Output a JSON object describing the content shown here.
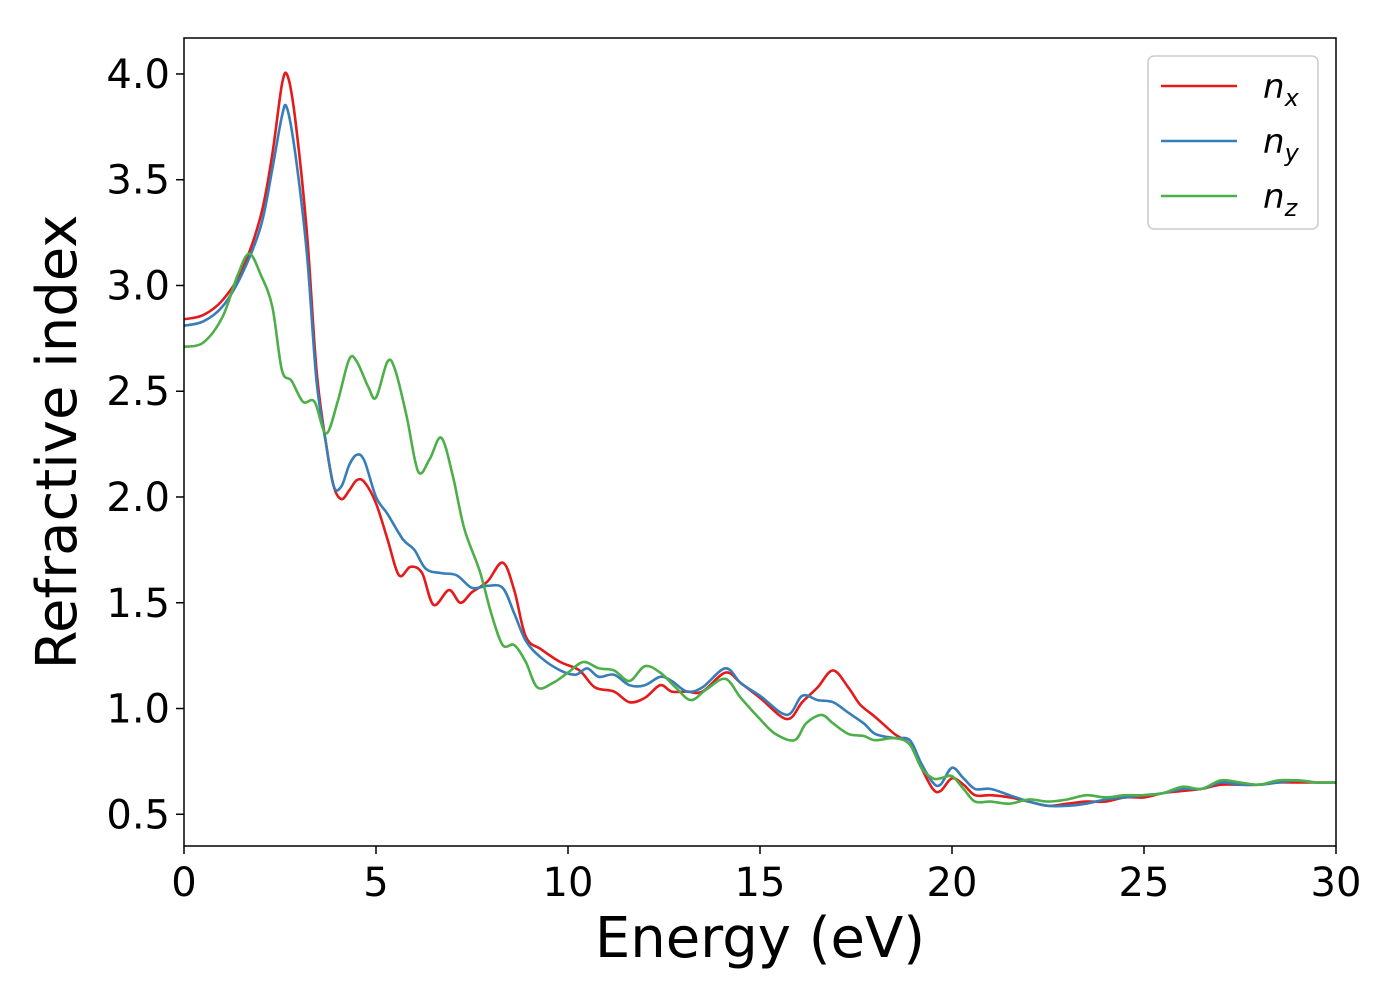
{
  "chart_data": {
    "type": "line",
    "title": "",
    "xlabel": "Energy (eV)",
    "ylabel": "Refractive index",
    "xlim": [
      0,
      30
    ],
    "ylim": [
      0.35,
      4.17
    ],
    "xticks": [
      0,
      5,
      10,
      15,
      20,
      25,
      30
    ],
    "yticks": [
      0.5,
      1.0,
      1.5,
      2.0,
      2.5,
      3.0,
      3.5,
      4.0
    ],
    "grid": false,
    "legend_position": "top-right",
    "series": [
      {
        "name": "n",
        "sub": "x",
        "color": "#e41a1c",
        "points": [
          [
            0,
            2.84
          ],
          [
            0.5,
            2.86
          ],
          [
            1.0,
            2.93
          ],
          [
            1.5,
            3.07
          ],
          [
            2.0,
            3.33
          ],
          [
            2.3,
            3.62
          ],
          [
            2.55,
            3.95
          ],
          [
            2.7,
            3.99
          ],
          [
            2.9,
            3.78
          ],
          [
            3.2,
            3.25
          ],
          [
            3.45,
            2.6
          ],
          [
            3.7,
            2.25
          ],
          [
            3.9,
            2.05
          ],
          [
            4.1,
            1.99
          ],
          [
            4.3,
            2.03
          ],
          [
            4.5,
            2.08
          ],
          [
            4.7,
            2.07
          ],
          [
            5.0,
            1.97
          ],
          [
            5.3,
            1.8
          ],
          [
            5.6,
            1.63
          ],
          [
            5.9,
            1.67
          ],
          [
            6.2,
            1.64
          ],
          [
            6.5,
            1.49
          ],
          [
            6.9,
            1.56
          ],
          [
            7.2,
            1.5
          ],
          [
            7.5,
            1.55
          ],
          [
            7.9,
            1.6
          ],
          [
            8.3,
            1.69
          ],
          [
            8.6,
            1.56
          ],
          [
            8.9,
            1.34
          ],
          [
            9.3,
            1.28
          ],
          [
            9.8,
            1.22
          ],
          [
            10.3,
            1.18
          ],
          [
            10.7,
            1.1
          ],
          [
            11.2,
            1.08
          ],
          [
            11.6,
            1.03
          ],
          [
            12.0,
            1.05
          ],
          [
            12.4,
            1.11
          ],
          [
            12.7,
            1.08
          ],
          [
            13.1,
            1.08
          ],
          [
            13.5,
            1.08
          ],
          [
            14.1,
            1.17
          ],
          [
            14.5,
            1.12
          ],
          [
            15.0,
            1.05
          ],
          [
            15.7,
            0.95
          ],
          [
            16.1,
            1.03
          ],
          [
            16.5,
            1.1
          ],
          [
            16.9,
            1.18
          ],
          [
            17.3,
            1.1
          ],
          [
            17.6,
            1.02
          ],
          [
            18.0,
            0.96
          ],
          [
            18.5,
            0.88
          ],
          [
            18.9,
            0.83
          ],
          [
            19.2,
            0.72
          ],
          [
            19.5,
            0.62
          ],
          [
            19.7,
            0.61
          ],
          [
            20.0,
            0.67
          ],
          [
            20.3,
            0.64
          ],
          [
            20.6,
            0.59
          ],
          [
            21.0,
            0.59
          ],
          [
            21.5,
            0.58
          ],
          [
            22.0,
            0.56
          ],
          [
            22.5,
            0.54
          ],
          [
            23.0,
            0.55
          ],
          [
            23.5,
            0.56
          ],
          [
            24.0,
            0.56
          ],
          [
            24.5,
            0.58
          ],
          [
            25.0,
            0.58
          ],
          [
            25.5,
            0.6
          ],
          [
            26.0,
            0.61
          ],
          [
            26.5,
            0.62
          ],
          [
            27.0,
            0.64
          ],
          [
            27.5,
            0.64
          ],
          [
            28.0,
            0.64
          ],
          [
            28.5,
            0.65
          ],
          [
            29.0,
            0.65
          ],
          [
            29.5,
            0.65
          ],
          [
            30.0,
            0.65
          ]
        ]
      },
      {
        "name": "n",
        "sub": "y",
        "color": "#377eb8",
        "points": [
          [
            0,
            2.81
          ],
          [
            0.5,
            2.83
          ],
          [
            1.0,
            2.9
          ],
          [
            1.5,
            3.05
          ],
          [
            2.0,
            3.28
          ],
          [
            2.3,
            3.55
          ],
          [
            2.55,
            3.8
          ],
          [
            2.68,
            3.84
          ],
          [
            2.9,
            3.62
          ],
          [
            3.2,
            3.15
          ],
          [
            3.45,
            2.55
          ],
          [
            3.7,
            2.25
          ],
          [
            3.9,
            2.05
          ],
          [
            4.1,
            2.05
          ],
          [
            4.3,
            2.15
          ],
          [
            4.5,
            2.2
          ],
          [
            4.7,
            2.17
          ],
          [
            5.0,
            2.0
          ],
          [
            5.3,
            1.92
          ],
          [
            5.7,
            1.8
          ],
          [
            6.0,
            1.75
          ],
          [
            6.3,
            1.66
          ],
          [
            6.7,
            1.64
          ],
          [
            7.1,
            1.63
          ],
          [
            7.5,
            1.57
          ],
          [
            7.9,
            1.58
          ],
          [
            8.3,
            1.57
          ],
          [
            8.6,
            1.45
          ],
          [
            8.9,
            1.32
          ],
          [
            9.3,
            1.24
          ],
          [
            9.8,
            1.18
          ],
          [
            10.2,
            1.16
          ],
          [
            10.5,
            1.19
          ],
          [
            10.8,
            1.15
          ],
          [
            11.2,
            1.16
          ],
          [
            11.6,
            1.11
          ],
          [
            12.0,
            1.11
          ],
          [
            12.4,
            1.15
          ],
          [
            12.7,
            1.13
          ],
          [
            13.1,
            1.08
          ],
          [
            13.5,
            1.1
          ],
          [
            14.1,
            1.19
          ],
          [
            14.5,
            1.12
          ],
          [
            15.0,
            1.06
          ],
          [
            15.7,
            0.97
          ],
          [
            16.1,
            1.06
          ],
          [
            16.5,
            1.04
          ],
          [
            16.9,
            1.03
          ],
          [
            17.3,
            0.98
          ],
          [
            17.7,
            0.93
          ],
          [
            18.0,
            0.88
          ],
          [
            18.5,
            0.86
          ],
          [
            18.9,
            0.85
          ],
          [
            19.2,
            0.74
          ],
          [
            19.5,
            0.65
          ],
          [
            19.7,
            0.64
          ],
          [
            20.0,
            0.72
          ],
          [
            20.3,
            0.67
          ],
          [
            20.6,
            0.62
          ],
          [
            21.0,
            0.62
          ],
          [
            21.5,
            0.59
          ],
          [
            22.0,
            0.56
          ],
          [
            22.5,
            0.54
          ],
          [
            23.0,
            0.54
          ],
          [
            23.5,
            0.55
          ],
          [
            24.0,
            0.57
          ],
          [
            24.5,
            0.58
          ],
          [
            25.0,
            0.59
          ],
          [
            25.5,
            0.6
          ],
          [
            26.0,
            0.62
          ],
          [
            26.5,
            0.62
          ],
          [
            27.0,
            0.65
          ],
          [
            27.5,
            0.64
          ],
          [
            28.0,
            0.64
          ],
          [
            28.5,
            0.65
          ],
          [
            29.0,
            0.66
          ],
          [
            29.5,
            0.65
          ],
          [
            30.0,
            0.65
          ]
        ]
      },
      {
        "name": "n",
        "sub": "z",
        "color": "#4daf4a",
        "points": [
          [
            0,
            2.71
          ],
          [
            0.5,
            2.73
          ],
          [
            1.0,
            2.85
          ],
          [
            1.4,
            3.05
          ],
          [
            1.7,
            3.15
          ],
          [
            2.0,
            3.05
          ],
          [
            2.3,
            2.9
          ],
          [
            2.55,
            2.6
          ],
          [
            2.8,
            2.55
          ],
          [
            3.1,
            2.45
          ],
          [
            3.4,
            2.45
          ],
          [
            3.7,
            2.3
          ],
          [
            4.0,
            2.45
          ],
          [
            4.3,
            2.65
          ],
          [
            4.5,
            2.64
          ],
          [
            4.8,
            2.52
          ],
          [
            5.0,
            2.47
          ],
          [
            5.3,
            2.64
          ],
          [
            5.5,
            2.6
          ],
          [
            5.8,
            2.38
          ],
          [
            6.1,
            2.12
          ],
          [
            6.4,
            2.18
          ],
          [
            6.7,
            2.28
          ],
          [
            7.0,
            2.1
          ],
          [
            7.3,
            1.85
          ],
          [
            7.7,
            1.65
          ],
          [
            8.0,
            1.45
          ],
          [
            8.3,
            1.3
          ],
          [
            8.6,
            1.3
          ],
          [
            8.9,
            1.22
          ],
          [
            9.2,
            1.1
          ],
          [
            9.6,
            1.12
          ],
          [
            10.0,
            1.17
          ],
          [
            10.4,
            1.22
          ],
          [
            10.8,
            1.19
          ],
          [
            11.2,
            1.18
          ],
          [
            11.6,
            1.13
          ],
          [
            12.0,
            1.2
          ],
          [
            12.4,
            1.17
          ],
          [
            12.8,
            1.1
          ],
          [
            13.2,
            1.04
          ],
          [
            13.6,
            1.09
          ],
          [
            14.1,
            1.14
          ],
          [
            14.5,
            1.05
          ],
          [
            15.0,
            0.95
          ],
          [
            15.4,
            0.88
          ],
          [
            15.9,
            0.85
          ],
          [
            16.2,
            0.93
          ],
          [
            16.6,
            0.97
          ],
          [
            16.9,
            0.93
          ],
          [
            17.3,
            0.88
          ],
          [
            17.7,
            0.87
          ],
          [
            18.0,
            0.85
          ],
          [
            18.5,
            0.86
          ],
          [
            18.9,
            0.83
          ],
          [
            19.2,
            0.72
          ],
          [
            19.5,
            0.67
          ],
          [
            19.7,
            0.67
          ],
          [
            20.0,
            0.68
          ],
          [
            20.3,
            0.62
          ],
          [
            20.6,
            0.56
          ],
          [
            21.0,
            0.56
          ],
          [
            21.5,
            0.55
          ],
          [
            22.0,
            0.57
          ],
          [
            22.5,
            0.56
          ],
          [
            23.0,
            0.57
          ],
          [
            23.5,
            0.59
          ],
          [
            24.0,
            0.58
          ],
          [
            24.5,
            0.59
          ],
          [
            25.0,
            0.59
          ],
          [
            25.5,
            0.6
          ],
          [
            26.0,
            0.63
          ],
          [
            26.5,
            0.62
          ],
          [
            27.0,
            0.66
          ],
          [
            27.5,
            0.65
          ],
          [
            28.0,
            0.64
          ],
          [
            28.5,
            0.66
          ],
          [
            29.0,
            0.66
          ],
          [
            29.5,
            0.65
          ],
          [
            30.0,
            0.65
          ]
        ]
      }
    ]
  }
}
